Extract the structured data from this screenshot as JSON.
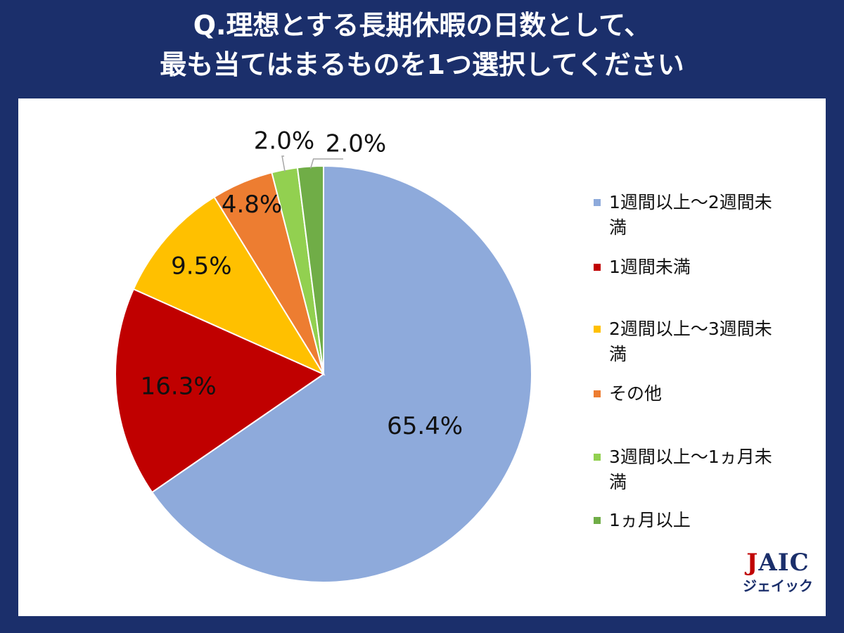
{
  "title": {
    "line1": "Q.理想とする長期休暇の日数として、",
    "line2": "最も当てはまるものを1つ選択してください"
  },
  "chart_data": {
    "type": "pie",
    "start_angle_deg": 0,
    "direction": "clockwise",
    "slices": [
      {
        "label": "1週間以上～2週間未満",
        "value": 65.4,
        "display": "65.4%",
        "color": "#8eaadb"
      },
      {
        "label": "1週間未満",
        "value": 16.3,
        "display": "16.3%",
        "color": "#c00000"
      },
      {
        "label": "2週間以上～3週間未満",
        "value": 9.5,
        "display": "9.5%",
        "color": "#ffc000"
      },
      {
        "label": "その他",
        "value": 4.8,
        "display": "4.8%",
        "color": "#ed7d31"
      },
      {
        "label": "3週間以上～1ヵ月未満",
        "value": 2.0,
        "display": "2.0%",
        "color": "#92d050"
      },
      {
        "label": "1ヵ月以上",
        "value": 2.0,
        "display": "2.0%",
        "color": "#70ad47"
      }
    ],
    "legend": {
      "position": "right",
      "items": [
        "1週間以上～2週間未満",
        "1週間未満",
        "2週間以上～3週間未満",
        "その他",
        "3週間以上～1ヵ月未満",
        "1ヵ月以上"
      ]
    }
  },
  "logo": {
    "j": "J",
    "aic": "AIC",
    "sub": "ジェイック"
  }
}
